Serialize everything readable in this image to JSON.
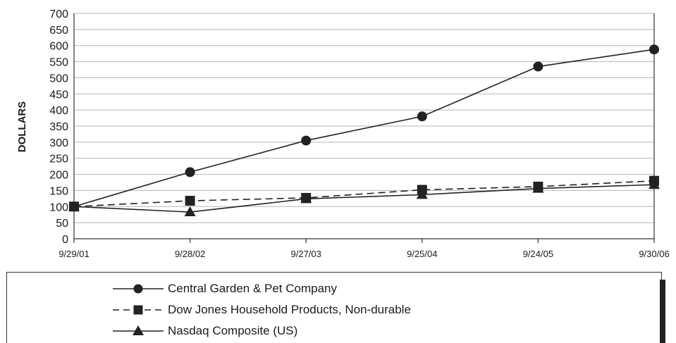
{
  "chart_data": {
    "type": "line",
    "title": "",
    "xlabel": "",
    "ylabel": "DOLLARS",
    "ylim": [
      0,
      700
    ],
    "yticks": [
      "0",
      "50",
      "100",
      "150",
      "200",
      "250",
      "300",
      "350",
      "400",
      "450",
      "500",
      "550",
      "600",
      "650",
      "700"
    ],
    "categories": [
      "9/29/01",
      "9/28/02",
      "9/27/03",
      "9/25/04",
      "9/24/05",
      "9/30/06"
    ],
    "grid": true,
    "legend_position": "bottom",
    "series": [
      {
        "name": "Central Garden & Pet Company",
        "values": [
          100,
          207,
          305,
          380,
          535,
          588
        ],
        "marker": "circle",
        "line": "solid"
      },
      {
        "name": "Dow Jones Household Products, Non-durable",
        "values": [
          100,
          118,
          127,
          152,
          162,
          180
        ],
        "marker": "square",
        "line": "dashed"
      },
      {
        "name": "Nasdaq Composite (US)",
        "values": [
          100,
          83,
          124,
          137,
          156,
          168
        ],
        "marker": "triangle",
        "line": "solid"
      }
    ]
  }
}
